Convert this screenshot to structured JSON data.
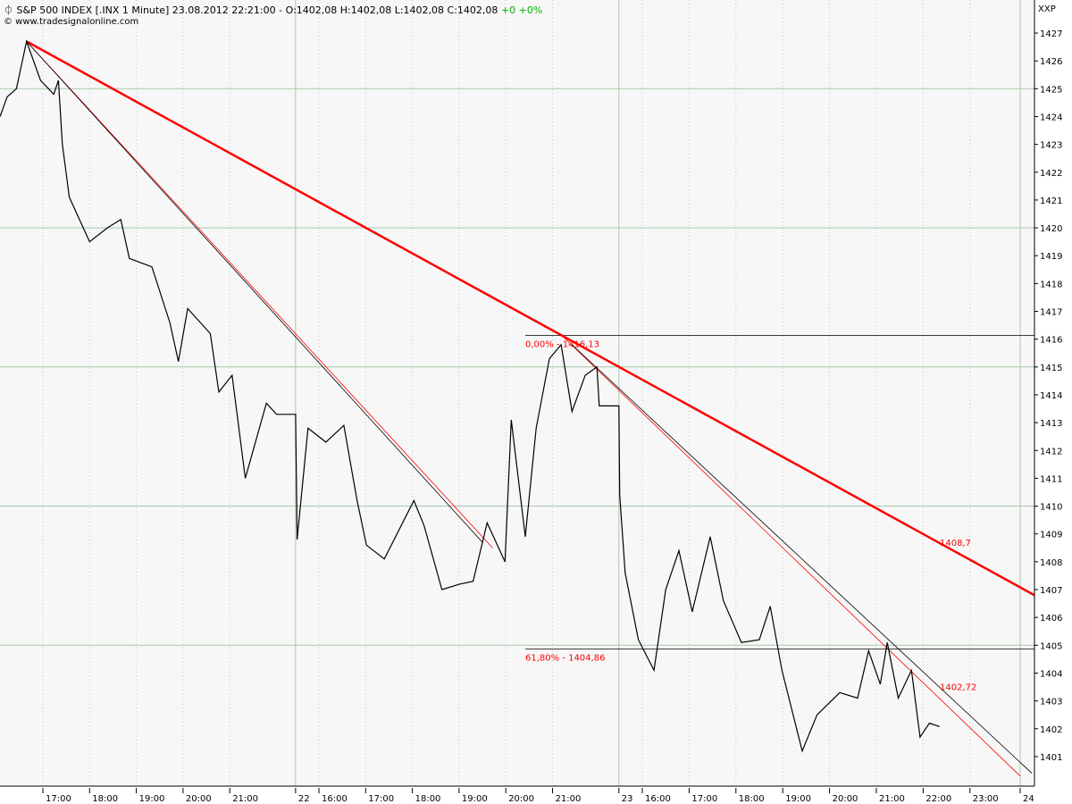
{
  "header": {
    "symbol_icon": "candle-icon",
    "title": "S&P 500 INDEX [.INX  1 Minute] 23.08.2012 22:21:00 - O:1402,08 H:1402,08 L:1402,08 C:1402,08",
    "change": "+0 +0%",
    "copyright": "© www.tradesignalonline.com",
    "axis_label": "XXP"
  },
  "colors": {
    "price": "#000000",
    "trend": "#ff0000",
    "grid": "#a8c8a8",
    "background": "#f7f7f7",
    "change_up": "#00b000"
  },
  "chart_data": {
    "type": "line",
    "title": "S&P 500 INDEX [.INX  1 Minute]",
    "ylim": [
      1400.3,
      1428
    ],
    "y_ticks": [
      1401,
      1402,
      1403,
      1404,
      1405,
      1406,
      1407,
      1408,
      1409,
      1410,
      1411,
      1412,
      1413,
      1414,
      1415,
      1416,
      1417,
      1418,
      1419,
      1420,
      1421,
      1422,
      1423,
      1424,
      1425,
      1426,
      1427
    ],
    "x_tick_labels": [
      {
        "day": 21,
        "t": "17:00",
        "label": "17:00"
      },
      {
        "day": 21,
        "t": "18:00",
        "label": "18:00"
      },
      {
        "day": 21,
        "t": "19:00",
        "label": "19:00"
      },
      {
        "day": 21,
        "t": "20:00",
        "label": "20:00"
      },
      {
        "day": 21,
        "t": "21:00",
        "label": "21:00"
      },
      {
        "day": 22,
        "t": "15:30",
        "label": "22"
      },
      {
        "day": 22,
        "t": "16:00",
        "label": "16:00"
      },
      {
        "day": 22,
        "t": "17:00",
        "label": "17:00"
      },
      {
        "day": 22,
        "t": "18:00",
        "label": "18:00"
      },
      {
        "day": 22,
        "t": "19:00",
        "label": "19:00"
      },
      {
        "day": 22,
        "t": "20:00",
        "label": "20:00"
      },
      {
        "day": 22,
        "t": "21:00",
        "label": "21:00"
      },
      {
        "day": 23,
        "t": "15:30",
        "label": "23"
      },
      {
        "day": 23,
        "t": "16:00",
        "label": "16:00"
      },
      {
        "day": 23,
        "t": "17:00",
        "label": "17:00"
      },
      {
        "day": 23,
        "t": "18:00",
        "label": "18:00"
      },
      {
        "day": 23,
        "t": "19:00",
        "label": "19:00"
      },
      {
        "day": 23,
        "t": "20:00",
        "label": "20:00"
      },
      {
        "day": 23,
        "t": "21:00",
        "label": "21:00"
      },
      {
        "day": 23,
        "t": "22:00",
        "label": "22:00"
      },
      {
        "day": 23,
        "t": "23:00",
        "label": "23:00"
      },
      {
        "day": 24,
        "t": "00:00",
        "label": "24"
      }
    ],
    "grid": true,
    "series": [
      {
        "points": [
          [
            21,
            "16:05",
            1424.0
          ],
          [
            21,
            "16:14",
            1424.7
          ],
          [
            21,
            "16:26",
            1425.0
          ],
          [
            21,
            "16:39",
            1426.7
          ],
          [
            21,
            "16:57",
            1425.3
          ],
          [
            21,
            "17:14",
            1424.8
          ],
          [
            21,
            "17:20",
            1425.3
          ],
          [
            21,
            "17:25",
            1423.0
          ],
          [
            21,
            "17:34",
            1421.1
          ],
          [
            21,
            "18:00",
            1419.5
          ],
          [
            21,
            "18:23",
            1420.0
          ],
          [
            21,
            "18:40",
            1420.3
          ],
          [
            21,
            "18:51",
            1418.9
          ],
          [
            21,
            "19:20",
            1418.6
          ],
          [
            21,
            "19:43",
            1416.6
          ],
          [
            21,
            "19:54",
            1415.2
          ],
          [
            21,
            "20:06",
            1417.1
          ],
          [
            21,
            "20:35",
            1416.2
          ],
          [
            21,
            "20:46",
            1414.1
          ],
          [
            21,
            "21:03",
            1414.7
          ],
          [
            21,
            "21:20",
            1411.0
          ],
          [
            21,
            "21:47",
            1413.7
          ],
          [
            21,
            "22:00",
            1413.3
          ],
          [
            22,
            "15:30",
            1413.3
          ],
          [
            22,
            "15:32",
            1408.8
          ],
          [
            22,
            "15:46",
            1412.8
          ],
          [
            22,
            "16:09",
            1412.3
          ],
          [
            22,
            "16:32",
            1412.9
          ],
          [
            22,
            "16:49",
            1410.2
          ],
          [
            22,
            "17:01",
            1408.6
          ],
          [
            22,
            "17:24",
            1408.1
          ],
          [
            22,
            "18:02",
            1410.2
          ],
          [
            22,
            "18:15",
            1409.3
          ],
          [
            22,
            "18:38",
            1407.0
          ],
          [
            22,
            "19:01",
            1407.2
          ],
          [
            22,
            "19:18",
            1407.3
          ],
          [
            22,
            "19:36",
            1409.4
          ],
          [
            22,
            "19:59",
            1408.0
          ],
          [
            22,
            "20:07",
            1413.1
          ],
          [
            22,
            "20:25",
            1408.9
          ],
          [
            22,
            "20:39",
            1412.8
          ],
          [
            22,
            "20:56",
            1415.3
          ],
          [
            22,
            "21:11",
            1415.8
          ],
          [
            22,
            "21:25",
            1413.4
          ],
          [
            22,
            "21:42",
            1414.7
          ],
          [
            22,
            "21:57",
            1415.0
          ],
          [
            22,
            "22:00",
            1413.6
          ],
          [
            23,
            "15:30",
            1413.6
          ],
          [
            23,
            "15:31",
            1410.4
          ],
          [
            23,
            "15:38",
            1407.6
          ],
          [
            23,
            "15:55",
            1405.2
          ],
          [
            23,
            "16:15",
            1404.1
          ],
          [
            23,
            "16:30",
            1407.0
          ],
          [
            23,
            "16:47",
            1408.4
          ],
          [
            23,
            "17:04",
            1406.2
          ],
          [
            23,
            "17:27",
            1408.9
          ],
          [
            23,
            "17:44",
            1406.6
          ],
          [
            23,
            "18:07",
            1405.1
          ],
          [
            23,
            "18:30",
            1405.2
          ],
          [
            23,
            "18:44",
            1406.4
          ],
          [
            23,
            "18:59",
            1404.1
          ],
          [
            23,
            "19:25",
            1401.2
          ],
          [
            23,
            "19:44",
            1402.5
          ],
          [
            23,
            "20:13",
            1403.3
          ],
          [
            23,
            "20:36",
            1403.1
          ],
          [
            23,
            "20:50",
            1404.8
          ],
          [
            23,
            "21:05",
            1403.6
          ],
          [
            23,
            "21:14",
            1405.1
          ],
          [
            23,
            "21:28",
            1403.1
          ],
          [
            23,
            "21:45",
            1404.1
          ],
          [
            23,
            "21:56",
            1401.7
          ],
          [
            23,
            "22:08",
            1402.2
          ],
          [
            23,
            "22:21",
            1402.08
          ]
        ]
      }
    ],
    "trendlines": [
      {
        "color": "#ff0000",
        "style": "thick",
        "from": [
          21,
          "16:39",
          1426.7
        ],
        "to": [
          22,
          "21:12",
          1416.13
        ],
        "extend": true,
        "label": "1408,7"
      },
      {
        "color": "#ff0000",
        "style": "thin",
        "from": [
          21,
          "16:39",
          1426.7
        ],
        "to": [
          22,
          "19:43",
          1408.5
        ],
        "extend": false
      },
      {
        "color": "#000000",
        "style": "thin",
        "from": [
          21,
          "16:39",
          1426.7
        ],
        "to": [
          22,
          "19:30",
          1408.7
        ],
        "extend": false
      },
      {
        "color": "#ff0000",
        "style": "thin",
        "from": [
          22,
          "21:12",
          1416.13
        ],
        "to": [
          24,
          "00:00",
          1400.3
        ],
        "extend": false
      },
      {
        "color": "#000000",
        "style": "thin",
        "from": [
          22,
          "21:25",
          1415.8
        ],
        "to": [
          24,
          "00:15",
          1400.4
        ],
        "extend": false,
        "label": "1402,72"
      }
    ],
    "fib_levels": [
      {
        "label": "0,00% - 1416,13",
        "value": 1416.13,
        "from": [
          22,
          "20:25"
        ]
      },
      {
        "label": "61,80% - 1404,86",
        "value": 1404.86,
        "from": [
          22,
          "20:25"
        ]
      }
    ]
  }
}
